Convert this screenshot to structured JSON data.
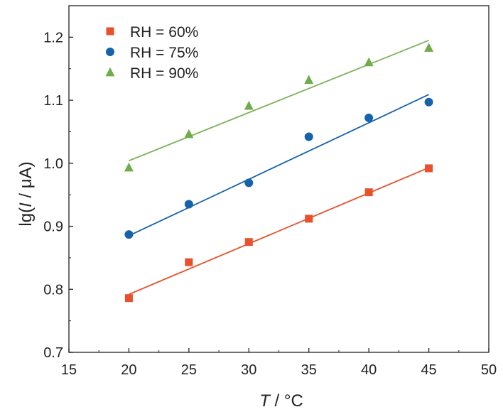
{
  "chart_data": {
    "type": "scatter",
    "xlabel_var": "T",
    "xlabel_unit": " / °C",
    "ylabel_prefix": "lg(",
    "ylabel_var": "I",
    "ylabel_suffix": " / μA)",
    "xlim": [
      15,
      50
    ],
    "ylim": [
      0.7,
      1.25
    ],
    "xticks": [
      15,
      20,
      25,
      30,
      35,
      40,
      45,
      50
    ],
    "yticks": [
      0.7,
      0.8,
      0.9,
      1.0,
      1.1,
      1.2
    ],
    "xtick_labels": [
      "15",
      "20",
      "25",
      "30",
      "35",
      "40",
      "45",
      "50"
    ],
    "ytick_labels": [
      "0.7",
      "0.8",
      "0.9",
      "1.0",
      "1.1",
      "1.2"
    ],
    "grid": false,
    "legend_position": "top-left",
    "x": [
      20,
      25,
      30,
      35,
      40,
      45
    ],
    "series": [
      {
        "name": "RH = 60%",
        "marker": "square",
        "color": "#e8512b",
        "line_color": "#e8512b",
        "values": [
          0.786,
          0.843,
          0.875,
          0.912,
          0.954,
          0.992
        ],
        "fit": [
          0.792,
          0.993
        ]
      },
      {
        "name": "RH = 75%",
        "marker": "circle",
        "color": "#1763aa",
        "line_color": "#1763aa",
        "values": [
          0.887,
          0.935,
          0.969,
          1.042,
          1.072,
          1.097
        ],
        "fit": [
          0.885,
          1.109
        ]
      },
      {
        "name": "RH = 90%",
        "marker": "triangle",
        "color": "#6fad4a",
        "line_color": "#7cb35a",
        "values": [
          0.993,
          1.046,
          1.091,
          1.132,
          1.16,
          1.183
        ],
        "fit": [
          1.004,
          1.195
        ]
      }
    ]
  }
}
